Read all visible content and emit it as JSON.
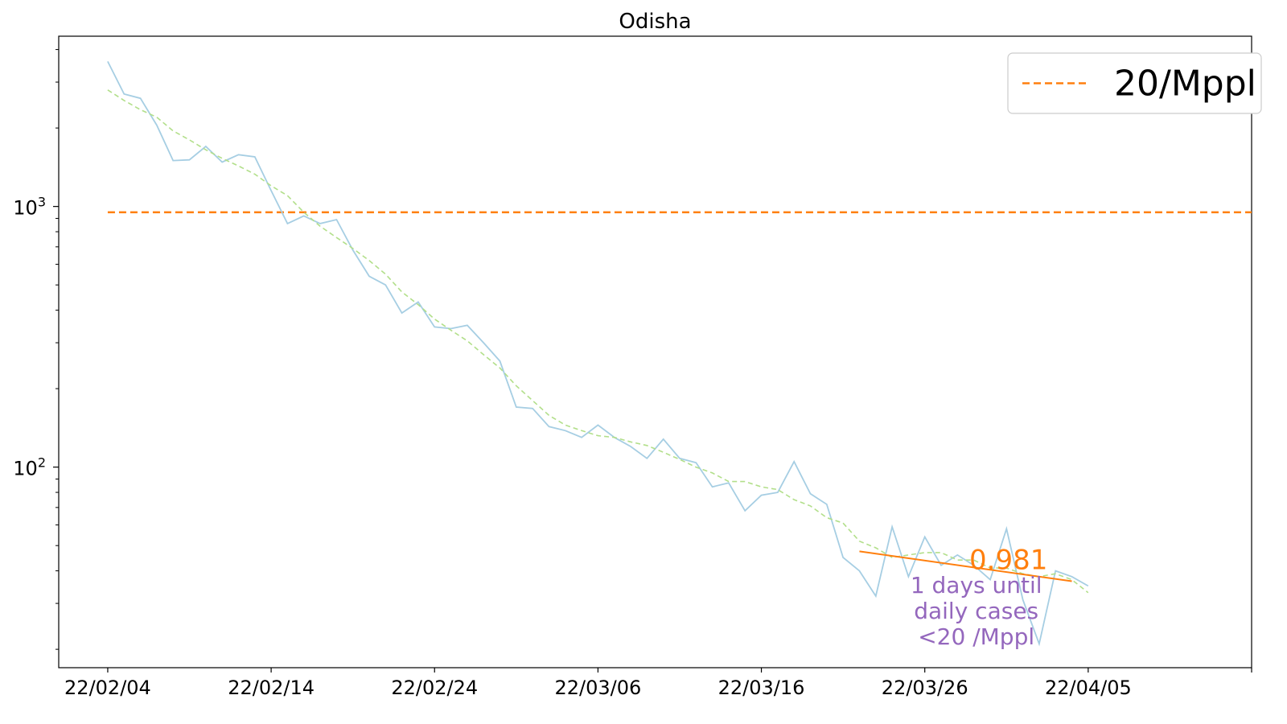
{
  "chart_data": {
    "type": "line",
    "title": "Odisha",
    "xlabel": "",
    "ylabel": "",
    "yscale": "log",
    "ylim": [
      17,
      4500
    ],
    "xlim": [
      "2022-02-01",
      "2022-04-15"
    ],
    "x_tick_labels": [
      "22/02/04",
      "22/02/14",
      "22/02/24",
      "22/03/06",
      "22/03/16",
      "22/03/26",
      "22/04/05"
    ],
    "x_tick_dates": [
      "2022-02-04",
      "2022-02-14",
      "2022-02-24",
      "2022-03-06",
      "2022-03-16",
      "2022-03-26",
      "2022-04-05",
      "2022-04-15"
    ],
    "y_ticks": [
      {
        "value": 100,
        "base": "10",
        "exp": "2"
      },
      {
        "value": 1000,
        "base": "10",
        "exp": "3"
      }
    ],
    "grid": false,
    "legend_position": "top-right",
    "series": [
      {
        "kind": "daily",
        "color": "#a6cee3",
        "style": "solid",
        "x": [
          "2022-02-04",
          "2022-02-05",
          "2022-02-06",
          "2022-02-07",
          "2022-02-08",
          "2022-02-09",
          "2022-02-10",
          "2022-02-11",
          "2022-02-12",
          "2022-02-13",
          "2022-02-14",
          "2022-02-15",
          "2022-02-16",
          "2022-02-17",
          "2022-02-18",
          "2022-02-19",
          "2022-02-20",
          "2022-02-21",
          "2022-02-22",
          "2022-02-23",
          "2022-02-24",
          "2022-02-25",
          "2022-02-26",
          "2022-02-27",
          "2022-02-28",
          "2022-03-01",
          "2022-03-02",
          "2022-03-03",
          "2022-03-04",
          "2022-03-05",
          "2022-03-06",
          "2022-03-07",
          "2022-03-08",
          "2022-03-09",
          "2022-03-10",
          "2022-03-11",
          "2022-03-12",
          "2022-03-13",
          "2022-03-14",
          "2022-03-15",
          "2022-03-16",
          "2022-03-17",
          "2022-03-18",
          "2022-03-19",
          "2022-03-20",
          "2022-03-21",
          "2022-03-22",
          "2022-03-23",
          "2022-03-24",
          "2022-03-25",
          "2022-03-26",
          "2022-03-27",
          "2022-03-28",
          "2022-03-29",
          "2022-03-30",
          "2022-03-31",
          "2022-04-01",
          "2022-04-02",
          "2022-04-03",
          "2022-04-04",
          "2022-04-05"
        ],
        "values": [
          3600,
          2700,
          2600,
          2050,
          1500,
          1510,
          1700,
          1480,
          1580,
          1550,
          1150,
          860,
          920,
          860,
          890,
          680,
          540,
          500,
          390,
          430,
          345,
          340,
          350,
          300,
          255,
          170,
          168,
          143,
          138,
          130,
          145,
          130,
          120,
          108,
          128,
          108,
          104,
          84,
          87,
          68,
          78,
          80,
          105,
          79,
          72,
          45,
          40,
          32,
          59,
          38,
          54,
          42,
          46,
          42,
          37,
          58,
          31,
          21,
          40,
          38,
          35
        ]
      },
      {
        "kind": "7-day average",
        "color": "#b2df8a",
        "style": "dashed",
        "x": [
          "2022-02-04",
          "2022-02-05",
          "2022-02-06",
          "2022-02-07",
          "2022-02-08",
          "2022-02-09",
          "2022-02-10",
          "2022-02-11",
          "2022-02-12",
          "2022-02-13",
          "2022-02-14",
          "2022-02-15",
          "2022-02-16",
          "2022-02-17",
          "2022-02-18",
          "2022-02-19",
          "2022-02-20",
          "2022-02-21",
          "2022-02-22",
          "2022-02-23",
          "2022-02-24",
          "2022-02-25",
          "2022-02-26",
          "2022-02-27",
          "2022-02-28",
          "2022-03-01",
          "2022-03-02",
          "2022-03-03",
          "2022-03-04",
          "2022-03-05",
          "2022-03-06",
          "2022-03-07",
          "2022-03-08",
          "2022-03-09",
          "2022-03-10",
          "2022-03-11",
          "2022-03-12",
          "2022-03-13",
          "2022-03-14",
          "2022-03-15",
          "2022-03-16",
          "2022-03-17",
          "2022-03-18",
          "2022-03-19",
          "2022-03-20",
          "2022-03-21",
          "2022-03-22",
          "2022-03-23",
          "2022-03-24",
          "2022-03-25",
          "2022-03-26",
          "2022-03-27",
          "2022-03-28",
          "2022-03-29",
          "2022-03-30",
          "2022-03-31",
          "2022-04-01",
          "2022-04-02",
          "2022-04-03",
          "2022-04-04",
          "2022-04-05"
        ],
        "values": [
          2800,
          2550,
          2350,
          2200,
          1950,
          1800,
          1650,
          1530,
          1430,
          1330,
          1200,
          1100,
          950,
          840,
          760,
          690,
          620,
          550,
          470,
          420,
          370,
          335,
          305,
          270,
          240,
          205,
          180,
          158,
          145,
          138,
          132,
          130,
          125,
          121,
          114,
          107,
          100,
          95,
          88,
          88,
          84,
          82,
          75,
          71,
          64,
          61,
          52,
          49,
          45,
          46,
          47,
          47,
          44,
          44,
          41,
          41,
          39,
          38,
          39,
          37,
          33
        ]
      }
    ],
    "reference_line": {
      "value": 950,
      "color": "#ff7f0e",
      "style": "dashed",
      "x_start": "2022-02-04",
      "x_end": "2022-04-15"
    },
    "legend": [
      {
        "label": "20/Mppl",
        "color": "#ff7f0e",
        "style": "dashed"
      }
    ],
    "trend_line": {
      "color": "#ff7f0e",
      "x": [
        "2022-03-22",
        "2022-04-04"
      ],
      "values": [
        47.5,
        36.5
      ]
    },
    "annotations": {
      "rate": {
        "text": "0.981",
        "color": "#ff7f0e"
      },
      "days": {
        "color": "#9467bd",
        "lines": [
          "1 days until",
          "daily cases",
          "<20 /Mppl"
        ]
      }
    }
  }
}
